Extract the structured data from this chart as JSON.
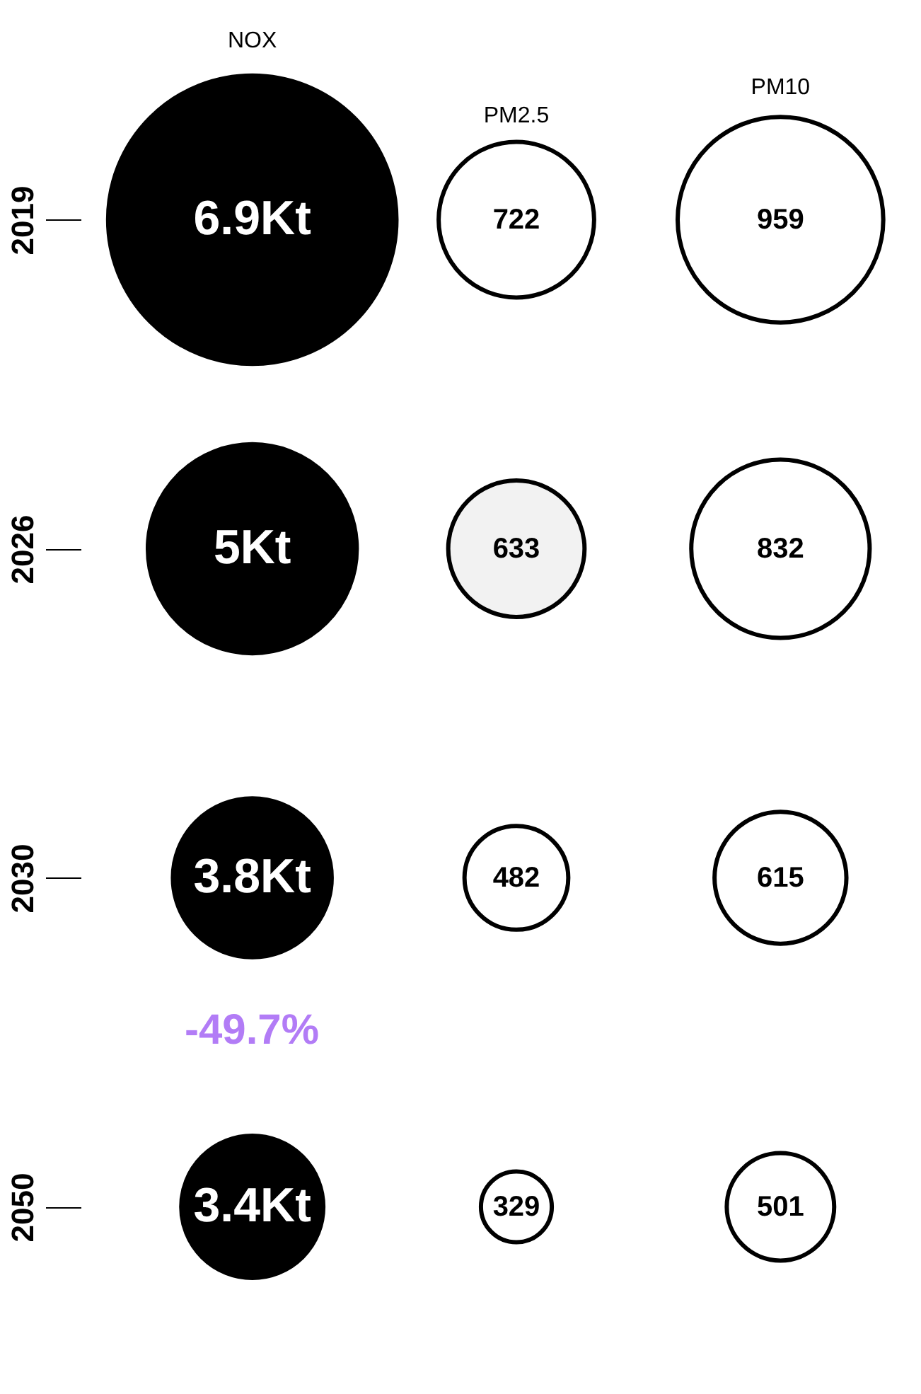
{
  "chart_data": {
    "type": "other",
    "categories": [
      "2019",
      "2026",
      "2030",
      "2050"
    ],
    "series": [
      {
        "name": "NOX",
        "color": "#000000",
        "colors": [
          "#000000",
          "#000000",
          "#000000",
          "#000000"
        ],
        "values": [
          6.9,
          5,
          3.8,
          3.4
        ],
        "value_labels": [
          "6.9Kt",
          "5Kt",
          "3.8Kt",
          "3.4Kt"
        ]
      },
      {
        "name": "PM2.5",
        "color": "#000000",
        "colors": [
          "#ffffff",
          "#f2f2f2",
          "#ffffff",
          "#ffffff"
        ],
        "values": [
          722,
          633,
          482,
          329
        ],
        "value_labels": [
          "722",
          "633",
          "482",
          "329"
        ]
      },
      {
        "name": "PM10",
        "color": "#000000",
        "colors": [
          "#ffffff",
          "#ffffff",
          "#ffffff",
          "#ffffff"
        ],
        "values": [
          959,
          832,
          615,
          501
        ],
        "value_labels": [
          "959",
          "832",
          "615",
          "501"
        ]
      }
    ],
    "annotations": [
      "-49.7%"
    ]
  }
}
